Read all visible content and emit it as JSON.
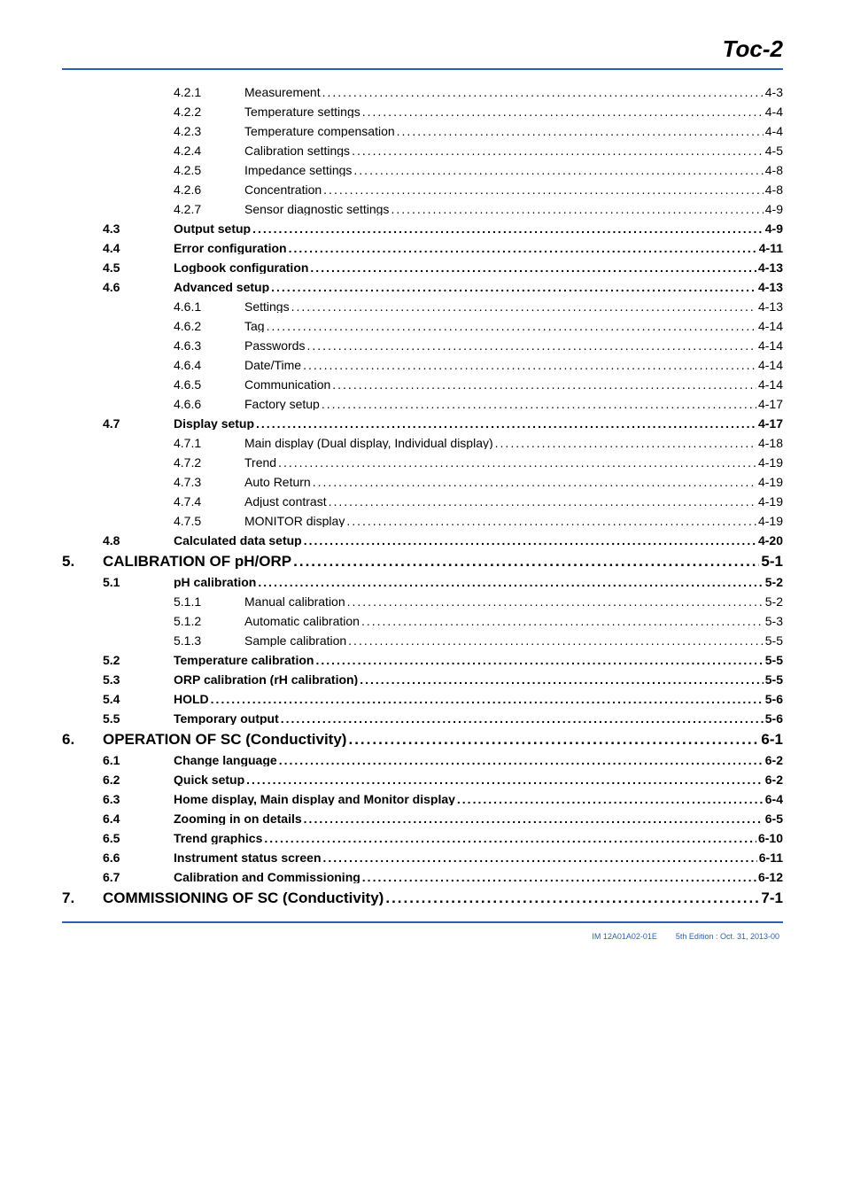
{
  "header": {
    "title": "Toc-2"
  },
  "footer": {
    "doc_id": "IM 12A01A02-01E",
    "edition": "5th Edition : Oct. 31, 2013-00"
  },
  "styles": {
    "rule_color": "#2e5fb5",
    "footer_color": "#2e5fb5",
    "body_font_size": 14,
    "chapter_font_size": 17
  },
  "toc": [
    {
      "level": "sub",
      "num": "4.2.1",
      "title": "Measurement",
      "page": "4-3"
    },
    {
      "level": "sub",
      "num": "4.2.2",
      "title": "Temperature settings",
      "page": "4-4"
    },
    {
      "level": "sub",
      "num": "4.2.3",
      "title": "Temperature compensation",
      "page": "4-4"
    },
    {
      "level": "sub",
      "num": "4.2.4",
      "title": "Calibration settings",
      "page": "4-5"
    },
    {
      "level": "sub",
      "num": "4.2.5",
      "title": "Impedance settings",
      "page": "4-8"
    },
    {
      "level": "sub",
      "num": "4.2.6",
      "title": "Concentration",
      "page": "4-8"
    },
    {
      "level": "sub",
      "num": "4.2.7",
      "title": "Sensor diagnostic settings",
      "page": "4-9"
    },
    {
      "level": "sec",
      "num": "4.3",
      "title": "Output setup",
      "page": "4-9"
    },
    {
      "level": "sec",
      "num": "4.4",
      "title": "Error configuration",
      "page": "4-11"
    },
    {
      "level": "sec",
      "num": "4.5",
      "title": "Logbook configuration",
      "page": "4-13"
    },
    {
      "level": "sec",
      "num": "4.6",
      "title": "Advanced setup",
      "page": "4-13"
    },
    {
      "level": "sub",
      "num": "4.6.1",
      "title": "Settings",
      "page": "4-13"
    },
    {
      "level": "sub",
      "num": "4.6.2",
      "title": "Tag",
      "page": "4-14"
    },
    {
      "level": "sub",
      "num": "4.6.3",
      "title": "Passwords",
      "page": "4-14"
    },
    {
      "level": "sub",
      "num": "4.6.4",
      "title": "Date/Time",
      "page": "4-14"
    },
    {
      "level": "sub",
      "num": "4.6.5",
      "title": "Communication",
      "page": "4-14"
    },
    {
      "level": "sub",
      "num": "4.6.6",
      "title": "Factory setup",
      "page": "4-17"
    },
    {
      "level": "sec",
      "num": "4.7",
      "title": "Display setup",
      "page": "4-17"
    },
    {
      "level": "sub",
      "num": "4.7.1",
      "title": "Main display (Dual display, Individual display)",
      "page": "4-18"
    },
    {
      "level": "sub",
      "num": "4.7.2",
      "title": "Trend",
      "page": "4-19"
    },
    {
      "level": "sub",
      "num": "4.7.3",
      "title": "Auto Return",
      "page": "4-19"
    },
    {
      "level": "sub",
      "num": "4.7.4",
      "title": "Adjust contrast",
      "page": "4-19"
    },
    {
      "level": "sub",
      "num": "4.7.5",
      "title": "MONITOR display",
      "page": "4-19"
    },
    {
      "level": "sec",
      "num": "4.8",
      "title": "Calculated data setup",
      "page": "4-20"
    },
    {
      "level": "chap",
      "num": "5.",
      "title": "CALIBRATION OF pH/ORP",
      "page": "5-1"
    },
    {
      "level": "sec",
      "num": "5.1",
      "title": "pH calibration",
      "page": "5-2"
    },
    {
      "level": "sub",
      "num": "5.1.1",
      "title": "Manual calibration",
      "page": "5-2"
    },
    {
      "level": "sub",
      "num": "5.1.2",
      "title": "Automatic calibration",
      "page": "5-3"
    },
    {
      "level": "sub",
      "num": "5.1.3",
      "title": "Sample calibration",
      "page": "5-5"
    },
    {
      "level": "sec",
      "num": "5.2",
      "title": "Temperature calibration",
      "page": "5-5"
    },
    {
      "level": "sec",
      "num": "5.3",
      "title": "ORP calibration (rH calibration)",
      "page": "5-5"
    },
    {
      "level": "sec",
      "num": "5.4",
      "title": "HOLD",
      "page": "5-6"
    },
    {
      "level": "sec",
      "num": "5.5",
      "title": "Temporary output",
      "page": "5-6"
    },
    {
      "level": "chap",
      "num": "6.",
      "title": "OPERATION OF SC (Conductivity)",
      "page": "6-1"
    },
    {
      "level": "sec",
      "num": "6.1",
      "title": "Change language",
      "page": "6-2"
    },
    {
      "level": "sec",
      "num": "6.2",
      "title": "Quick setup",
      "page": "6-2"
    },
    {
      "level": "sec",
      "num": "6.3",
      "title": "Home display, Main display and Monitor display",
      "page": "6-4"
    },
    {
      "level": "sec",
      "num": "6.4",
      "title": "Zooming in on details",
      "page": "6-5"
    },
    {
      "level": "sec",
      "num": "6.5",
      "title": "Trend graphics",
      "page": "6-10"
    },
    {
      "level": "sec",
      "num": "6.6",
      "title": "Instrument status screen",
      "page": "6-11"
    },
    {
      "level": "sec",
      "num": "6.7",
      "title": "Calibration and Commissioning",
      "page": "6-12"
    },
    {
      "level": "chap",
      "num": "7.",
      "title": "COMMISSIONING OF SC (Conductivity)",
      "page": "7-1"
    }
  ]
}
